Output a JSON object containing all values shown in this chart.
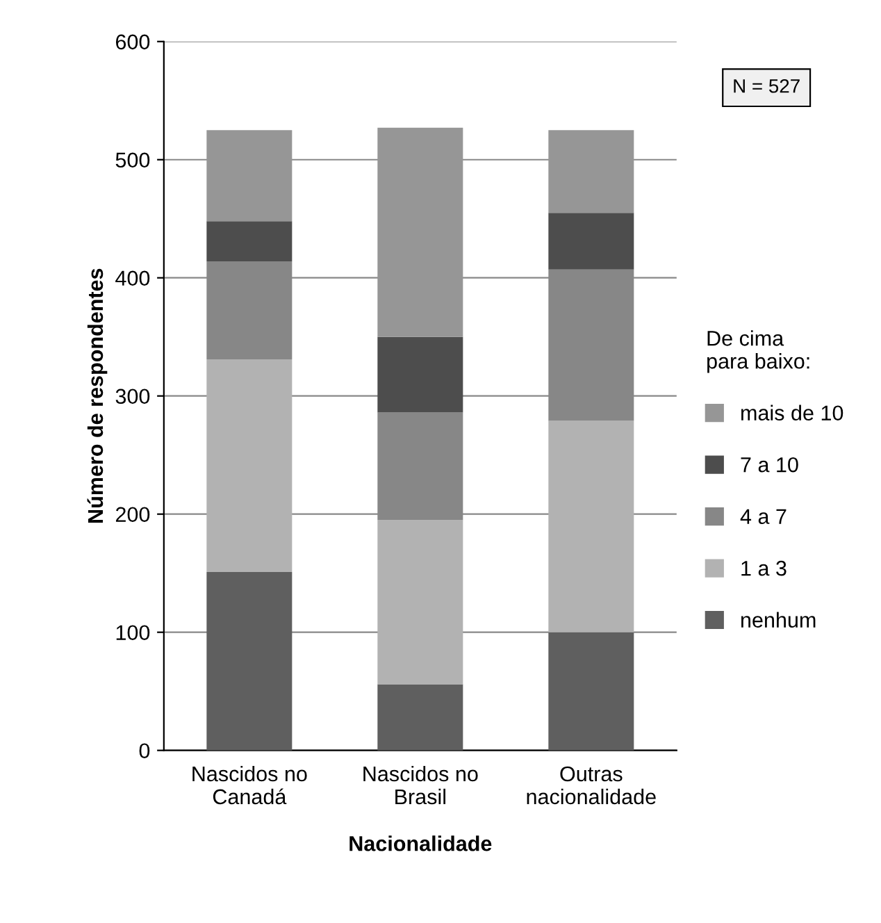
{
  "chart_data": {
    "type": "bar",
    "stacked": true,
    "xlabel": "Nacionalidade",
    "ylabel": "Número de respondentes",
    "legend_title": "De cima\npara baixo:",
    "annotations": [
      "N = 527"
    ],
    "categories": [
      "Nascidos no\nCanadá",
      "Nascidos no\nBrasil",
      "Outras\nnacionalidade"
    ],
    "series": [
      {
        "name": "nenhum",
        "color": "#5f5f5f",
        "values": [
          151,
          56,
          100
        ]
      },
      {
        "name": "1 a 3",
        "color": "#b2b2b2",
        "values": [
          180,
          139,
          179
        ]
      },
      {
        "name": "4 a 7",
        "color": "#878787",
        "values": [
          83,
          91,
          128
        ]
      },
      {
        "name": "7 a 10",
        "color": "#4d4d4d",
        "values": [
          34,
          64,
          48
        ]
      },
      {
        "name": "mais de 10",
        "color": "#969696",
        "values": [
          77,
          177,
          70
        ]
      }
    ],
    "ylim": [
      0,
      600
    ],
    "yticks": [
      0,
      100,
      200,
      300,
      400,
      500,
      600
    ],
    "grid": "y",
    "legend": "right"
  }
}
